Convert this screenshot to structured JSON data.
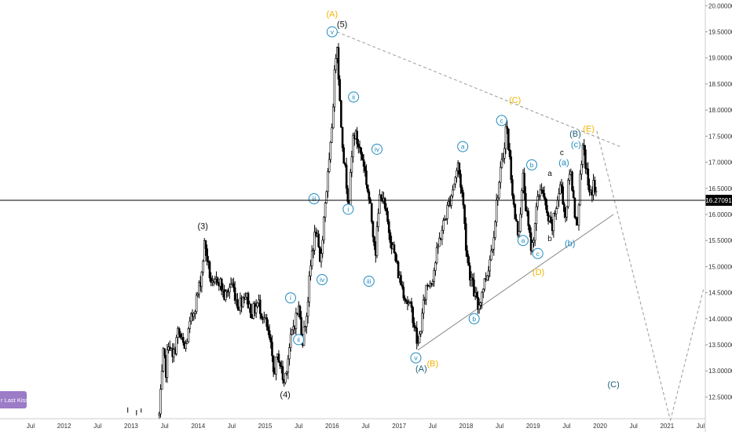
{
  "chart_data": {
    "type": "candlestick",
    "colors": {
      "up": "#000000",
      "down": "#000000",
      "black": "#111111",
      "yellow": "#f0b400",
      "blue": "#1f8ac0",
      "teal": "#1b5e78",
      "trendline_solid": "#8a8a8a",
      "trendline_dashed": "#9a9a9a",
      "price_line": "#000000",
      "price_label_bg": "#000000",
      "price_label_text": "#ffffff",
      "note_bg": "#9c7bc7"
    },
    "y_axis": {
      "min": 12.1,
      "max": 20.05,
      "ticks": [
        "12.50000",
        "13.00000",
        "13.50000",
        "14.00000",
        "14.50000",
        "15.00000",
        "15.50000",
        "16.00000",
        "16.50000",
        "17.00000",
        "17.50000",
        "18.00000",
        "18.50000",
        "19.00000",
        "19.50000",
        "20.00000"
      ]
    },
    "x_axis": {
      "ticks": [
        {
          "label": "Jul",
          "t": 2011.5
        },
        {
          "label": "2012",
          "t": 2012.0
        },
        {
          "label": "Jul",
          "t": 2012.5
        },
        {
          "label": "2013",
          "t": 2013.0
        },
        {
          "label": "Jul",
          "t": 2013.5
        },
        {
          "label": "2014",
          "t": 2014.0
        },
        {
          "label": "Jul",
          "t": 2014.5
        },
        {
          "label": "2015",
          "t": 2015.0
        },
        {
          "label": "Jul",
          "t": 2015.5
        },
        {
          "label": "2016",
          "t": 2016.0
        },
        {
          "label": "Jul",
          "t": 2016.5
        },
        {
          "label": "2017",
          "t": 2017.0
        },
        {
          "label": "Jul",
          "t": 2017.5
        },
        {
          "label": "2018",
          "t": 2018.0
        },
        {
          "label": "Jul",
          "t": 2018.5
        },
        {
          "label": "2019",
          "t": 2019.0
        },
        {
          "label": "Jul",
          "t": 2019.5
        },
        {
          "label": "2020",
          "t": 2020.0
        },
        {
          "label": "Jul",
          "t": 2020.5
        },
        {
          "label": "2021",
          "t": 2021.0
        },
        {
          "label": "Jul",
          "t": 2021.5
        }
      ]
    },
    "current_price": 16.27091,
    "current_price_label": "16.27091",
    "price_path": [
      [
        2013.42,
        12.15
      ],
      [
        2013.45,
        12.7
      ],
      [
        2013.48,
        13.3
      ],
      [
        2013.52,
        13.0
      ],
      [
        2013.56,
        13.6
      ],
      [
        2013.62,
        13.2
      ],
      [
        2013.7,
        13.75
      ],
      [
        2013.8,
        13.4
      ],
      [
        2013.9,
        14.0
      ],
      [
        2014.0,
        14.5
      ],
      [
        2014.05,
        14.85
      ],
      [
        2014.1,
        15.5
      ],
      [
        2014.15,
        15.0
      ],
      [
        2014.22,
        14.55
      ],
      [
        2014.3,
        14.8
      ],
      [
        2014.4,
        14.4
      ],
      [
        2014.5,
        14.7
      ],
      [
        2014.6,
        14.25
      ],
      [
        2014.7,
        14.5
      ],
      [
        2014.8,
        14.1
      ],
      [
        2014.9,
        14.3
      ],
      [
        2015.0,
        13.95
      ],
      [
        2015.08,
        13.5
      ],
      [
        2015.12,
        12.95
      ],
      [
        2015.2,
        13.3
      ],
      [
        2015.28,
        12.75
      ],
      [
        2015.35,
        13.35
      ],
      [
        2015.42,
        13.85
      ],
      [
        2015.5,
        14.2
      ],
      [
        2015.56,
        13.6
      ],
      [
        2015.62,
        14.1
      ],
      [
        2015.7,
        15.3
      ],
      [
        2015.76,
        15.7
      ],
      [
        2015.82,
        15.0
      ],
      [
        2015.9,
        16.3
      ],
      [
        2015.97,
        17.1
      ],
      [
        2016.03,
        18.5
      ],
      [
        2016.07,
        19.45
      ],
      [
        2016.12,
        18.0
      ],
      [
        2016.18,
        17.0
      ],
      [
        2016.25,
        16.2
      ],
      [
        2016.32,
        17.6
      ],
      [
        2016.4,
        17.3
      ],
      [
        2016.47,
        17.0
      ],
      [
        2016.55,
        16.3
      ],
      [
        2016.6,
        15.8
      ],
      [
        2016.65,
        15.3
      ],
      [
        2016.72,
        16.5
      ],
      [
        2016.8,
        16.0
      ],
      [
        2016.9,
        15.4
      ],
      [
        2017.0,
        14.8
      ],
      [
        2017.1,
        14.4
      ],
      [
        2017.2,
        14.1
      ],
      [
        2017.28,
        13.45
      ],
      [
        2017.34,
        14.0
      ],
      [
        2017.4,
        14.6
      ],
      [
        2017.5,
        14.8
      ],
      [
        2017.6,
        15.5
      ],
      [
        2017.7,
        16.0
      ],
      [
        2017.8,
        16.5
      ],
      [
        2017.88,
        16.95
      ],
      [
        2017.95,
        16.3
      ],
      [
        2018.0,
        15.4
      ],
      [
        2018.05,
        14.9
      ],
      [
        2018.12,
        14.5
      ],
      [
        2018.18,
        14.2
      ],
      [
        2018.25,
        14.6
      ],
      [
        2018.32,
        14.9
      ],
      [
        2018.4,
        15.5
      ],
      [
        2018.47,
        16.4
      ],
      [
        2018.55,
        17.1
      ],
      [
        2018.6,
        17.75
      ],
      [
        2018.67,
        16.8
      ],
      [
        2018.72,
        16.0
      ],
      [
        2018.78,
        15.6
      ],
      [
        2018.85,
        16.7
      ],
      [
        2018.92,
        15.8
      ],
      [
        2018.98,
        15.3
      ],
      [
        2019.05,
        16.1
      ],
      [
        2019.12,
        16.6
      ],
      [
        2019.2,
        16.0
      ],
      [
        2019.28,
        15.7
      ],
      [
        2019.35,
        16.2
      ],
      [
        2019.42,
        16.6
      ],
      [
        2019.48,
        15.9
      ],
      [
        2019.55,
        16.9
      ],
      [
        2019.6,
        16.4
      ],
      [
        2019.65,
        15.7
      ],
      [
        2019.7,
        16.6
      ],
      [
        2019.75,
        17.3
      ],
      [
        2019.8,
        16.8
      ],
      [
        2019.85,
        16.3
      ],
      [
        2019.9,
        16.6
      ],
      [
        2019.96,
        16.25
      ]
    ],
    "trendlines": [
      {
        "style": "dashed",
        "points": [
          [
            2016.07,
            19.5
          ],
          [
            2020.3,
            17.3
          ]
        ]
      },
      {
        "style": "solid",
        "points": [
          [
            2017.28,
            13.4
          ],
          [
            2020.2,
            16.0
          ]
        ]
      },
      {
        "style": "dashed",
        "points": [
          [
            2019.95,
            17.6
          ],
          [
            2021.05,
            12.05
          ]
        ]
      },
      {
        "style": "dashed",
        "points": [
          [
            2021.05,
            12.05
          ],
          [
            2021.55,
            14.6
          ]
        ]
      }
    ],
    "wave_labels": [
      {
        "text": "(A)",
        "t": 2016.0,
        "v": 19.85,
        "color": "yellow",
        "circled": false
      },
      {
        "text": "(5)",
        "t": 2016.15,
        "v": 19.65,
        "color": "black",
        "circled": false
      },
      {
        "text": "v",
        "t": 2016.0,
        "v": 19.5,
        "color": "blue",
        "circled": true
      },
      {
        "text": "ii",
        "t": 2016.32,
        "v": 18.25,
        "color": "blue",
        "circled": true
      },
      {
        "text": "iii",
        "t": 2015.73,
        "v": 16.3,
        "color": "blue",
        "circled": true
      },
      {
        "text": "i",
        "t": 2016.24,
        "v": 16.1,
        "color": "blue",
        "circled": true
      },
      {
        "text": "iv",
        "t": 2016.67,
        "v": 17.25,
        "color": "blue",
        "circled": true
      },
      {
        "text": "iii",
        "t": 2016.55,
        "v": 14.72,
        "color": "blue",
        "circled": true
      },
      {
        "text": "iv",
        "t": 2015.85,
        "v": 14.75,
        "color": "blue",
        "circled": true
      },
      {
        "text": "i",
        "t": 2015.38,
        "v": 14.4,
        "color": "blue",
        "circled": true
      },
      {
        "text": "ii",
        "t": 2015.5,
        "v": 13.6,
        "color": "blue",
        "circled": true
      },
      {
        "text": "(3)",
        "t": 2014.07,
        "v": 15.78,
        "color": "black",
        "circled": false
      },
      {
        "text": "(4)",
        "t": 2015.3,
        "v": 12.55,
        "color": "black",
        "circled": false
      },
      {
        "text": "v",
        "t": 2017.25,
        "v": 13.25,
        "color": "blue",
        "circled": true
      },
      {
        "text": "(A)",
        "t": 2017.33,
        "v": 13.05,
        "color": "teal",
        "circled": false
      },
      {
        "text": "(B)",
        "t": 2017.5,
        "v": 13.15,
        "color": "yellow",
        "circled": false
      },
      {
        "text": "a",
        "t": 2017.95,
        "v": 17.3,
        "color": "blue",
        "circled": true
      },
      {
        "text": "b",
        "t": 2018.12,
        "v": 14.0,
        "color": "blue",
        "circled": true
      },
      {
        "text": "c",
        "t": 2018.53,
        "v": 17.8,
        "color": "blue",
        "circled": true
      },
      {
        "text": "(C)",
        "t": 2018.73,
        "v": 18.2,
        "color": "yellow",
        "circled": false
      },
      {
        "text": "a",
        "t": 2018.85,
        "v": 15.5,
        "color": "blue",
        "circled": true
      },
      {
        "text": "b",
        "t": 2018.98,
        "v": 16.95,
        "color": "blue",
        "circled": true
      },
      {
        "text": "c",
        "t": 2019.07,
        "v": 15.25,
        "color": "blue",
        "circled": true
      },
      {
        "text": "(D)",
        "t": 2019.08,
        "v": 14.9,
        "color": "yellow",
        "circled": false
      },
      {
        "text": "a",
        "t": 2019.25,
        "v": 16.8,
        "color": "black",
        "circled": false
      },
      {
        "text": "b",
        "t": 2019.25,
        "v": 15.55,
        "color": "black",
        "circled": false
      },
      {
        "text": "c",
        "t": 2019.43,
        "v": 17.2,
        "color": "black",
        "circled": false
      },
      {
        "text": "(a)",
        "t": 2019.46,
        "v": 17.0,
        "color": "blue",
        "circled": false
      },
      {
        "text": "(b)",
        "t": 2019.55,
        "v": 15.45,
        "color": "blue",
        "circled": false
      },
      {
        "text": "(c)",
        "t": 2019.64,
        "v": 17.35,
        "color": "blue",
        "circled": false
      },
      {
        "text": "(B)",
        "t": 2019.63,
        "v": 17.55,
        "color": "teal",
        "circled": false
      },
      {
        "text": "(E)",
        "t": 2019.83,
        "v": 17.65,
        "color": "yellow",
        "circled": false
      },
      {
        "text": "(C)",
        "t": 2020.2,
        "v": 12.75,
        "color": "teal",
        "circled": false
      }
    ],
    "note_label": "r Last Kiss"
  }
}
